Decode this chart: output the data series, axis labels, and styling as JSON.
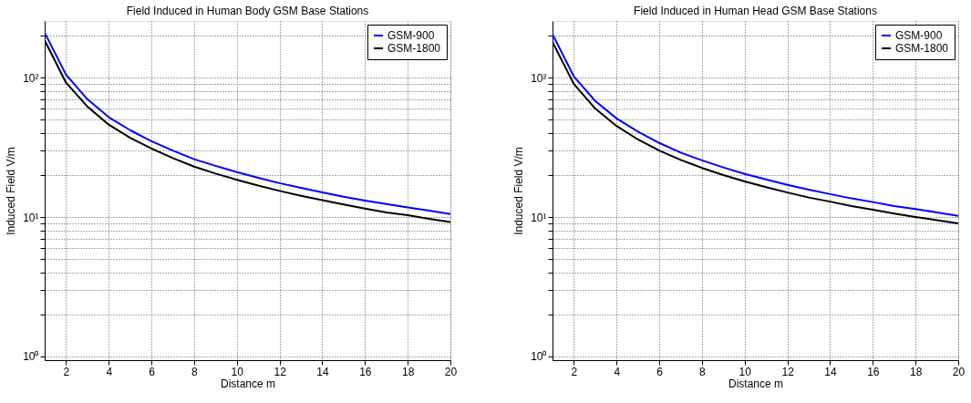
{
  "chart_data": [
    {
      "type": "line",
      "title": "Field Induced in Human Body GSM Base Stations",
      "xlabel": "Distance m",
      "ylabel": "Induced Field V/m",
      "x": [
        1,
        2,
        3,
        4,
        5,
        6,
        7,
        8,
        9,
        10,
        11,
        12,
        13,
        14,
        15,
        16,
        17,
        18,
        19,
        20
      ],
      "series": [
        {
          "name": "GSM-900",
          "color": "#0000ff",
          "values": [
            210,
            105,
            70,
            52,
            42,
            35,
            30,
            26,
            23.3,
            21,
            19.1,
            17.5,
            16.2,
            15,
            14,
            13.1,
            12.4,
            11.7,
            11.1,
            10.5
          ]
        },
        {
          "name": "GSM-1800",
          "color": "#000000",
          "values": [
            185,
            92,
            62,
            46,
            37,
            31,
            26.5,
            23,
            20.5,
            18.5,
            16.8,
            15.4,
            14.2,
            13.2,
            12.3,
            11.5,
            10.8,
            10.3,
            9.7,
            9.2
          ]
        }
      ],
      "xlim": [
        1,
        20
      ],
      "xticks": [
        2,
        4,
        6,
        8,
        10,
        12,
        14,
        16,
        18,
        20
      ],
      "ylim": [
        0.94,
        255
      ],
      "yticks": [
        {
          "value": 1,
          "label": "10⁰"
        },
        {
          "value": 2,
          "label": null
        },
        {
          "value": 3,
          "label": null
        },
        {
          "value": 4,
          "label": null
        },
        {
          "value": 5,
          "label": null
        },
        {
          "value": 6,
          "label": null
        },
        {
          "value": 7,
          "label": null
        },
        {
          "value": 8,
          "label": null
        },
        {
          "value": 9,
          "label": null
        },
        {
          "value": 10,
          "label": "10¹"
        },
        {
          "value": 20,
          "label": null
        },
        {
          "value": 30,
          "label": null
        },
        {
          "value": 40,
          "label": null
        },
        {
          "value": 50,
          "label": null
        },
        {
          "value": 60,
          "label": null
        },
        {
          "value": 70,
          "label": null
        },
        {
          "value": 80,
          "label": null
        },
        {
          "value": 90,
          "label": null
        },
        {
          "value": 100,
          "label": "10²"
        },
        {
          "value": 200,
          "label": null
        }
      ],
      "log": true,
      "grid": true,
      "legend": "top right",
      "line_style": "solid",
      "marker": "none"
    },
    {
      "type": "line",
      "title": "Field Induced in Human Head GSM Base Stations",
      "xlabel": "Distance m",
      "ylabel": "Induced Field V/m",
      "x": [
        1,
        2,
        3,
        4,
        5,
        6,
        7,
        8,
        9,
        10,
        11,
        12,
        13,
        14,
        15,
        16,
        17,
        18,
        19,
        20
      ],
      "series": [
        {
          "name": "GSM-900",
          "color": "#0000ff",
          "values": [
            205,
            102,
            68,
            51,
            41,
            34,
            29,
            25.5,
            22.7,
            20.4,
            18.6,
            17,
            15.7,
            14.6,
            13.6,
            12.8,
            12,
            11.4,
            10.8,
            10.2
          ]
        },
        {
          "name": "GSM-1800",
          "color": "#000000",
          "values": [
            180,
            90,
            60,
            45,
            36,
            30,
            25.7,
            22.5,
            20,
            18,
            16.4,
            15,
            13.8,
            12.9,
            12,
            11.3,
            10.6,
            10,
            9.5,
            9.0
          ]
        }
      ],
      "xlim": [
        1,
        20
      ],
      "xticks": [
        2,
        4,
        6,
        8,
        10,
        12,
        14,
        16,
        18,
        20
      ],
      "ylim": [
        0.94,
        255
      ],
      "yticks": [
        {
          "value": 1,
          "label": "10⁰"
        },
        {
          "value": 2,
          "label": null
        },
        {
          "value": 3,
          "label": null
        },
        {
          "value": 4,
          "label": null
        },
        {
          "value": 5,
          "label": null
        },
        {
          "value": 6,
          "label": null
        },
        {
          "value": 7,
          "label": null
        },
        {
          "value": 8,
          "label": null
        },
        {
          "value": 9,
          "label": null
        },
        {
          "value": 10,
          "label": "10¹"
        },
        {
          "value": 20,
          "label": null
        },
        {
          "value": 30,
          "label": null
        },
        {
          "value": 40,
          "label": null
        },
        {
          "value": 50,
          "label": null
        },
        {
          "value": 60,
          "label": null
        },
        {
          "value": 70,
          "label": null
        },
        {
          "value": 80,
          "label": null
        },
        {
          "value": 90,
          "label": null
        },
        {
          "value": 100,
          "label": "10²"
        },
        {
          "value": 200,
          "label": null
        }
      ],
      "log": true,
      "grid": true,
      "legend": "top right",
      "line_style": "solid",
      "marker": "none"
    }
  ]
}
